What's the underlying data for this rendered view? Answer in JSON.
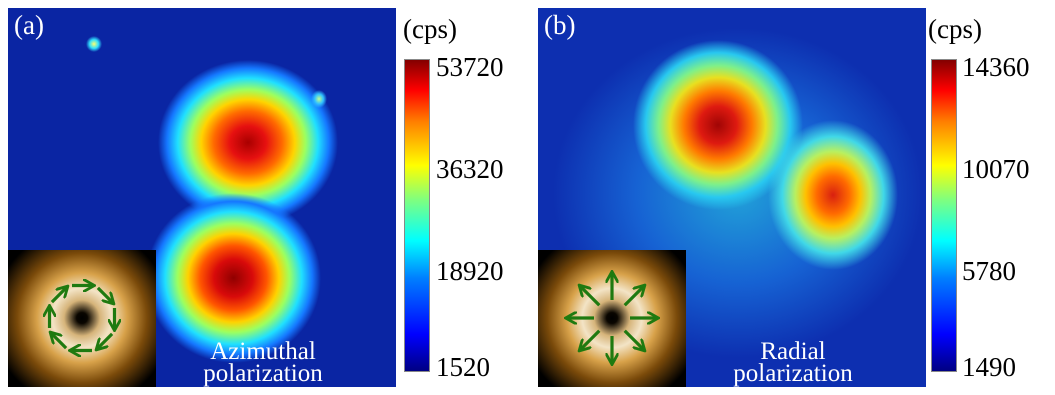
{
  "panels": [
    {
      "label": "(a)",
      "caption_line1": "Azimuthal",
      "caption_line2": "polarization",
      "colorbar_unit": "(cps)",
      "colorbar_ticks": [
        "53720",
        "36320",
        "18920",
        "1520"
      ],
      "inset_arrows": "azimuthal"
    },
    {
      "label": "(b)",
      "caption_line1": "Radial",
      "caption_line2": "polarization",
      "colorbar_unit": "(cps)",
      "colorbar_ticks": [
        "14360",
        "10070",
        "5780",
        "1490"
      ],
      "inset_arrows": "radial"
    }
  ],
  "colors": {
    "map_background": "#0a25a3",
    "arrow": "#1f7a10",
    "caption_text": "#ffffff"
  }
}
